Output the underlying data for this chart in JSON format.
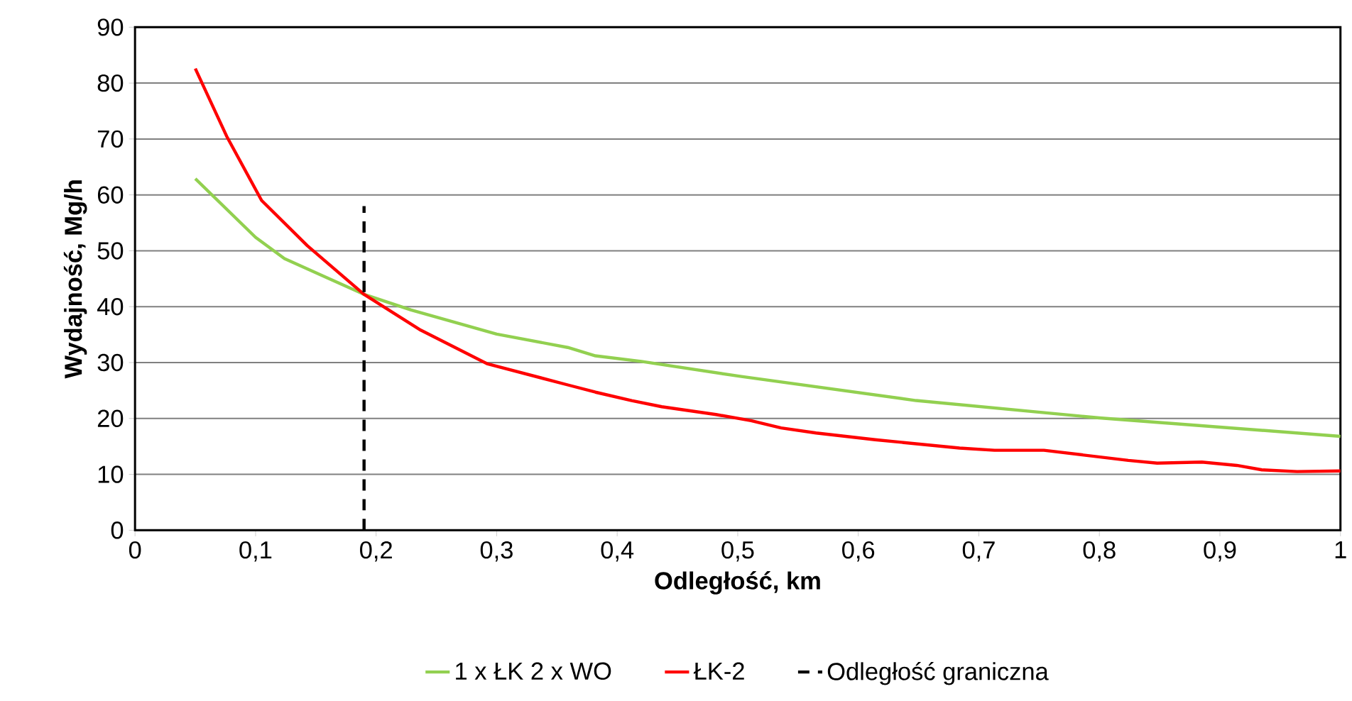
{
  "chart_data": {
    "type": "line",
    "xlabel": "Odległość, km",
    "ylabel": "Wydajność, Mg/h",
    "xlim": [
      0,
      1
    ],
    "ylim": [
      0,
      90
    ],
    "xticks": [
      0,
      {
        "value": 0.1,
        "label": "0,1"
      },
      {
        "value": 0.2,
        "label": "0,2"
      },
      {
        "value": 0.3,
        "label": "0,3"
      },
      {
        "value": 0.4,
        "label": "0,4"
      },
      {
        "value": 0.5,
        "label": "0,5"
      },
      {
        "value": 0.6,
        "label": "0,6"
      },
      {
        "value": 0.7,
        "label": "0,7"
      },
      {
        "value": 0.8,
        "label": "0,8"
      },
      {
        "value": 0.9,
        "label": "0,9"
      },
      1
    ],
    "yticks": [
      0,
      10,
      20,
      30,
      40,
      50,
      60,
      70,
      80,
      90
    ],
    "grid": "y",
    "legend": "bottom",
    "series": [
      {
        "name": "1 x ŁK 2 x WO",
        "color": "#92d050",
        "line_style": "solid",
        "x": [
          0.05,
          0.1,
          0.124,
          0.159,
          0.19,
          0.229,
          0.3,
          0.359,
          0.382,
          0.42,
          0.503,
          0.648,
          0.8,
          1.0
        ],
        "values": [
          62.9,
          52.4,
          48.6,
          45.2,
          42.2,
          39.4,
          35.1,
          32.7,
          31.2,
          30.2,
          27.5,
          23.2,
          20.1,
          16.8
        ]
      },
      {
        "name": "ŁK-2",
        "color": "#ff0000",
        "line_style": "solid",
        "x": [
          0.05,
          0.076,
          0.105,
          0.143,
          0.19,
          0.237,
          0.292,
          0.359,
          0.382,
          0.412,
          0.437,
          0.482,
          0.511,
          0.536,
          0.565,
          0.614,
          0.684,
          0.713,
          0.754,
          0.824,
          0.848,
          0.885,
          0.914,
          0.935,
          0.964,
          1.0
        ],
        "values": [
          82.6,
          70.5,
          59,
          50.9,
          42.2,
          35.8,
          29.8,
          26,
          24.7,
          23.2,
          22.1,
          20.7,
          19.6,
          18.3,
          17.4,
          16.2,
          14.7,
          14.3,
          14.3,
          12.5,
          12,
          12.2,
          11.6,
          10.8,
          10.5,
          10.6
        ]
      },
      {
        "name": "Odległość graniczna",
        "color": "#000000",
        "line_style": "dashed",
        "x": [
          0.19,
          0.19
        ],
        "values": [
          0,
          58
        ]
      }
    ]
  }
}
